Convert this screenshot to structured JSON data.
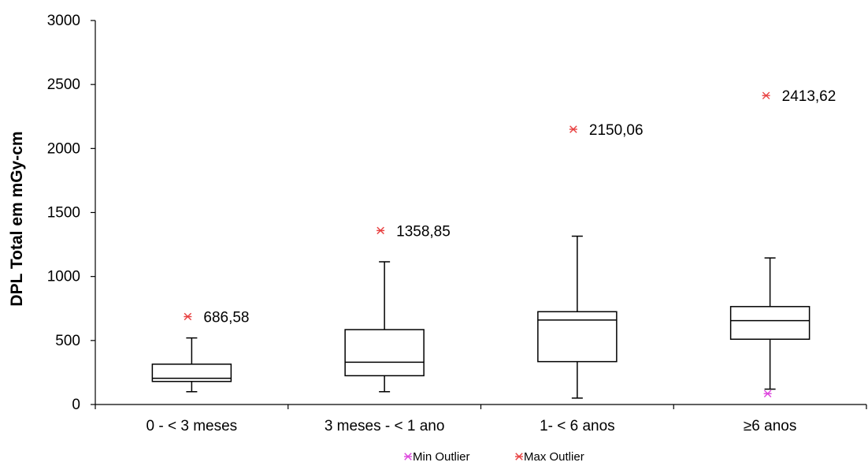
{
  "chart_data": {
    "type": "box",
    "ylabel": "DPL Total em mGy-cm",
    "xlabel": "",
    "ylim": [
      0,
      3000
    ],
    "yticks": [
      0,
      500,
      1000,
      1500,
      2000,
      2500,
      3000
    ],
    "grid": false,
    "legend_position": "bottom",
    "categories": [
      "0 - < 3 meses",
      "3 meses - < 1 ano",
      "1- < 6 anos",
      "≥6 anos"
    ],
    "boxes": [
      {
        "min": 100,
        "q1": 180,
        "median": 205,
        "q3": 315,
        "max": 520,
        "max_outlier": 686.58,
        "max_outlier_label": "686,58"
      },
      {
        "min": 100,
        "q1": 225,
        "median": 330,
        "q3": 585,
        "max": 1115,
        "max_outlier": 1358.85,
        "max_outlier_label": "1358,85"
      },
      {
        "min": 50,
        "q1": 335,
        "median": 660,
        "q3": 725,
        "max": 1315,
        "max_outlier": 2150.06,
        "max_outlier_label": "2150,06"
      },
      {
        "min": 120,
        "q1": 510,
        "median": 655,
        "q3": 765,
        "max": 1145,
        "max_outlier": 2413.62,
        "max_outlier_label": "2413,62",
        "min_outlier": 85
      }
    ],
    "legend": [
      {
        "name": "Min Outlier",
        "color": "#dd44dd",
        "marker": "asterisk"
      },
      {
        "name": "Max Outlier",
        "color": "#e84040",
        "marker": "asterisk"
      }
    ]
  }
}
